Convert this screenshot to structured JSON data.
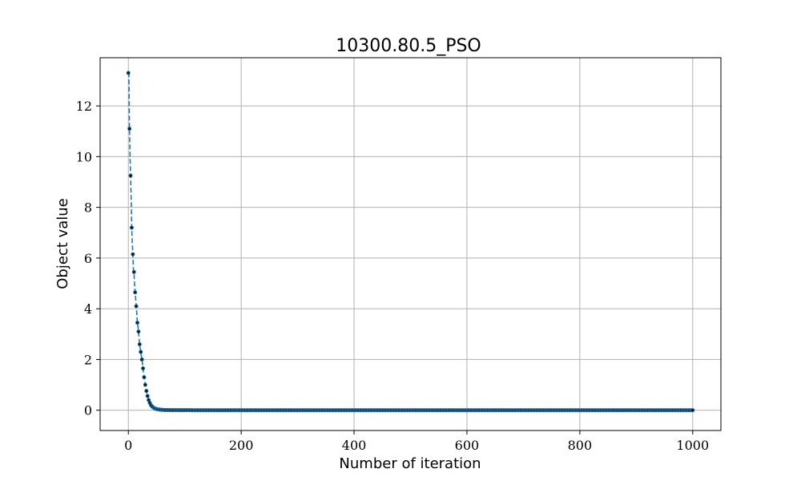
{
  "chart_data": {
    "type": "line",
    "title": "10300.80.5_PSO",
    "xlabel": "Number of iteration",
    "ylabel": "Object value",
    "xlim": [
      -50,
      1050
    ],
    "ylim": [
      -0.8,
      13.9
    ],
    "xticks": [
      0,
      200,
      400,
      600,
      800,
      1000
    ],
    "yticks": [
      0,
      2,
      4,
      6,
      8,
      10,
      12
    ],
    "grid": true,
    "line_style": "dashed",
    "marker": "dot",
    "colors": {
      "line": "#1f77b4",
      "marker_face": "#0b1a2e",
      "marker_edge": "#1f77b4"
    },
    "series": [
      {
        "x": [
          0,
          1,
          2,
          3,
          4,
          5,
          6,
          7,
          8,
          9,
          10,
          11,
          12,
          13,
          14,
          15,
          16,
          17,
          18,
          19,
          20,
          21,
          22,
          23,
          24,
          25,
          26,
          27,
          28,
          29,
          30,
          31,
          32,
          33,
          34,
          35,
          36,
          37,
          38,
          39,
          40,
          42,
          44,
          46,
          48,
          50,
          52,
          55,
          58,
          61,
          65,
          70,
          75,
          80,
          90,
          100,
          125,
          150,
          200,
          250,
          300,
          350,
          400,
          450,
          500,
          550,
          600,
          650,
          700,
          750,
          800,
          850,
          900,
          950,
          1000
        ],
        "y": [
          13.3,
          13.3,
          11.1,
          9.95,
          9.25,
          8.35,
          7.2,
          6.6,
          6.15,
          5.55,
          5.45,
          4.95,
          4.65,
          4.4,
          4.1,
          3.8,
          3.45,
          3.3,
          3.1,
          2.85,
          2.6,
          2.45,
          2.3,
          2.15,
          2.0,
          1.85,
          1.65,
          1.45,
          1.3,
          1.15,
          1.0,
          0.88,
          0.76,
          0.65,
          0.56,
          0.48,
          0.4,
          0.34,
          0.29,
          0.24,
          0.2,
          0.15,
          0.11,
          0.08,
          0.06,
          0.045,
          0.035,
          0.025,
          0.018,
          0.012,
          0.008,
          0.005,
          0.003,
          0.002,
          0.001,
          0.0005,
          0.0,
          0.0,
          0.0,
          0.0,
          0.0,
          0.0,
          0.0,
          0.0,
          0.0,
          0.0,
          0.0,
          0.0,
          0.0,
          0.0,
          0.0,
          0.0,
          0.0,
          0.0,
          0.0
        ]
      }
    ]
  }
}
